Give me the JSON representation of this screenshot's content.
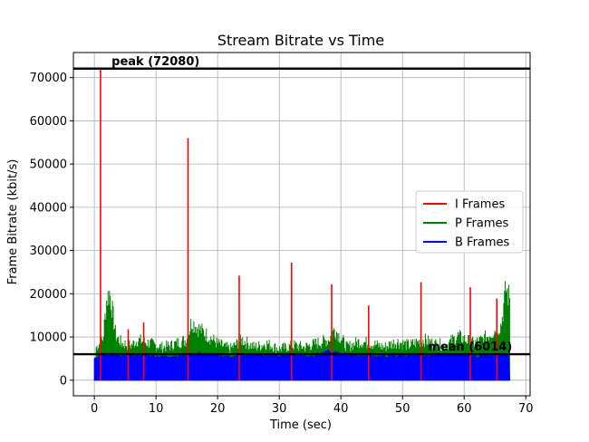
{
  "chart_data": {
    "type": "line",
    "title": "Stream Bitrate vs Time",
    "xlabel": "Time (sec)",
    "ylabel": "Frame Bitrate (kbit/s)",
    "xlim": [
      -3.4,
      70.7
    ],
    "ylim": [
      -3600,
      75800
    ],
    "xticks": [
      0,
      10,
      20,
      30,
      40,
      50,
      60,
      70
    ],
    "yticks": [
      0,
      10000,
      20000,
      30000,
      40000,
      50000,
      60000,
      70000
    ],
    "grid": true,
    "legend_position": "right",
    "colors": {
      "I Frames": "#ff0000",
      "P Frames": "#008000",
      "B Frames": "#0000ff",
      "reference": "#000000"
    },
    "reference_lines": [
      {
        "value": 72080,
        "label": "peak (72080)"
      },
      {
        "value": 6014,
        "label": "mean (6014)"
      }
    ],
    "series": [
      {
        "name": "I Frames",
        "spikes": [
          [
            1.0,
            72080
          ],
          [
            5.5,
            11800
          ],
          [
            8.0,
            13400
          ],
          [
            15.2,
            56000
          ],
          [
            23.5,
            24200
          ],
          [
            32.0,
            27200
          ],
          [
            38.5,
            22200
          ],
          [
            44.5,
            17300
          ],
          [
            53.0,
            22700
          ],
          [
            61.0,
            21500
          ],
          [
            65.3,
            18900
          ]
        ]
      },
      {
        "name": "P Frames",
        "x": [
          0.3,
          1.4,
          2.0,
          2.5,
          3.5,
          4.5,
          6.0,
          7.0,
          9.0,
          11.0,
          12.5,
          14.0,
          15.0,
          15.8,
          17.0,
          18.5,
          20.0,
          22.0,
          24.0,
          26.0,
          28.0,
          30.0,
          32.5,
          34.0,
          36.0,
          38.0,
          39.0,
          41.0,
          43.0,
          45.0,
          47.0,
          49.0,
          51.0,
          53.5,
          55.0,
          57.0,
          59.0,
          61.5,
          63.0,
          64.5,
          66.0,
          66.8,
          67.4
        ],
        "y": [
          9000,
          11000,
          22000,
          24000,
          12000,
          10000,
          9500,
          11000,
          10000,
          9000,
          9500,
          10500,
          11000,
          16000,
          14000,
          12000,
          10000,
          8500,
          11000,
          9000,
          10000,
          8500,
          9500,
          9000,
          10000,
          11000,
          14000,
          9000,
          10500,
          10000,
          9000,
          10500,
          9500,
          11000,
          10000,
          9500,
          12000,
          10000,
          11000,
          13000,
          15000,
          25000,
          22000
        ]
      },
      {
        "name": "B Frames",
        "x": [
          0.0,
          2.0,
          5.0,
          8.0,
          11.0,
          14.0,
          17.0,
          20.0,
          23.0,
          26.0,
          29.0,
          32.0,
          35.0,
          38.0,
          41.0,
          44.0,
          47.0,
          50.0,
          53.0,
          56.0,
          59.0,
          62.0,
          65.0,
          67.4
        ],
        "y": [
          5500,
          6500,
          6000,
          6200,
          5800,
          6000,
          6500,
          6000,
          5800,
          6200,
          6000,
          6300,
          5900,
          7000,
          6200,
          6000,
          5800,
          6100,
          6000,
          6300,
          6200,
          5900,
          6000,
          6400
        ]
      }
    ]
  }
}
